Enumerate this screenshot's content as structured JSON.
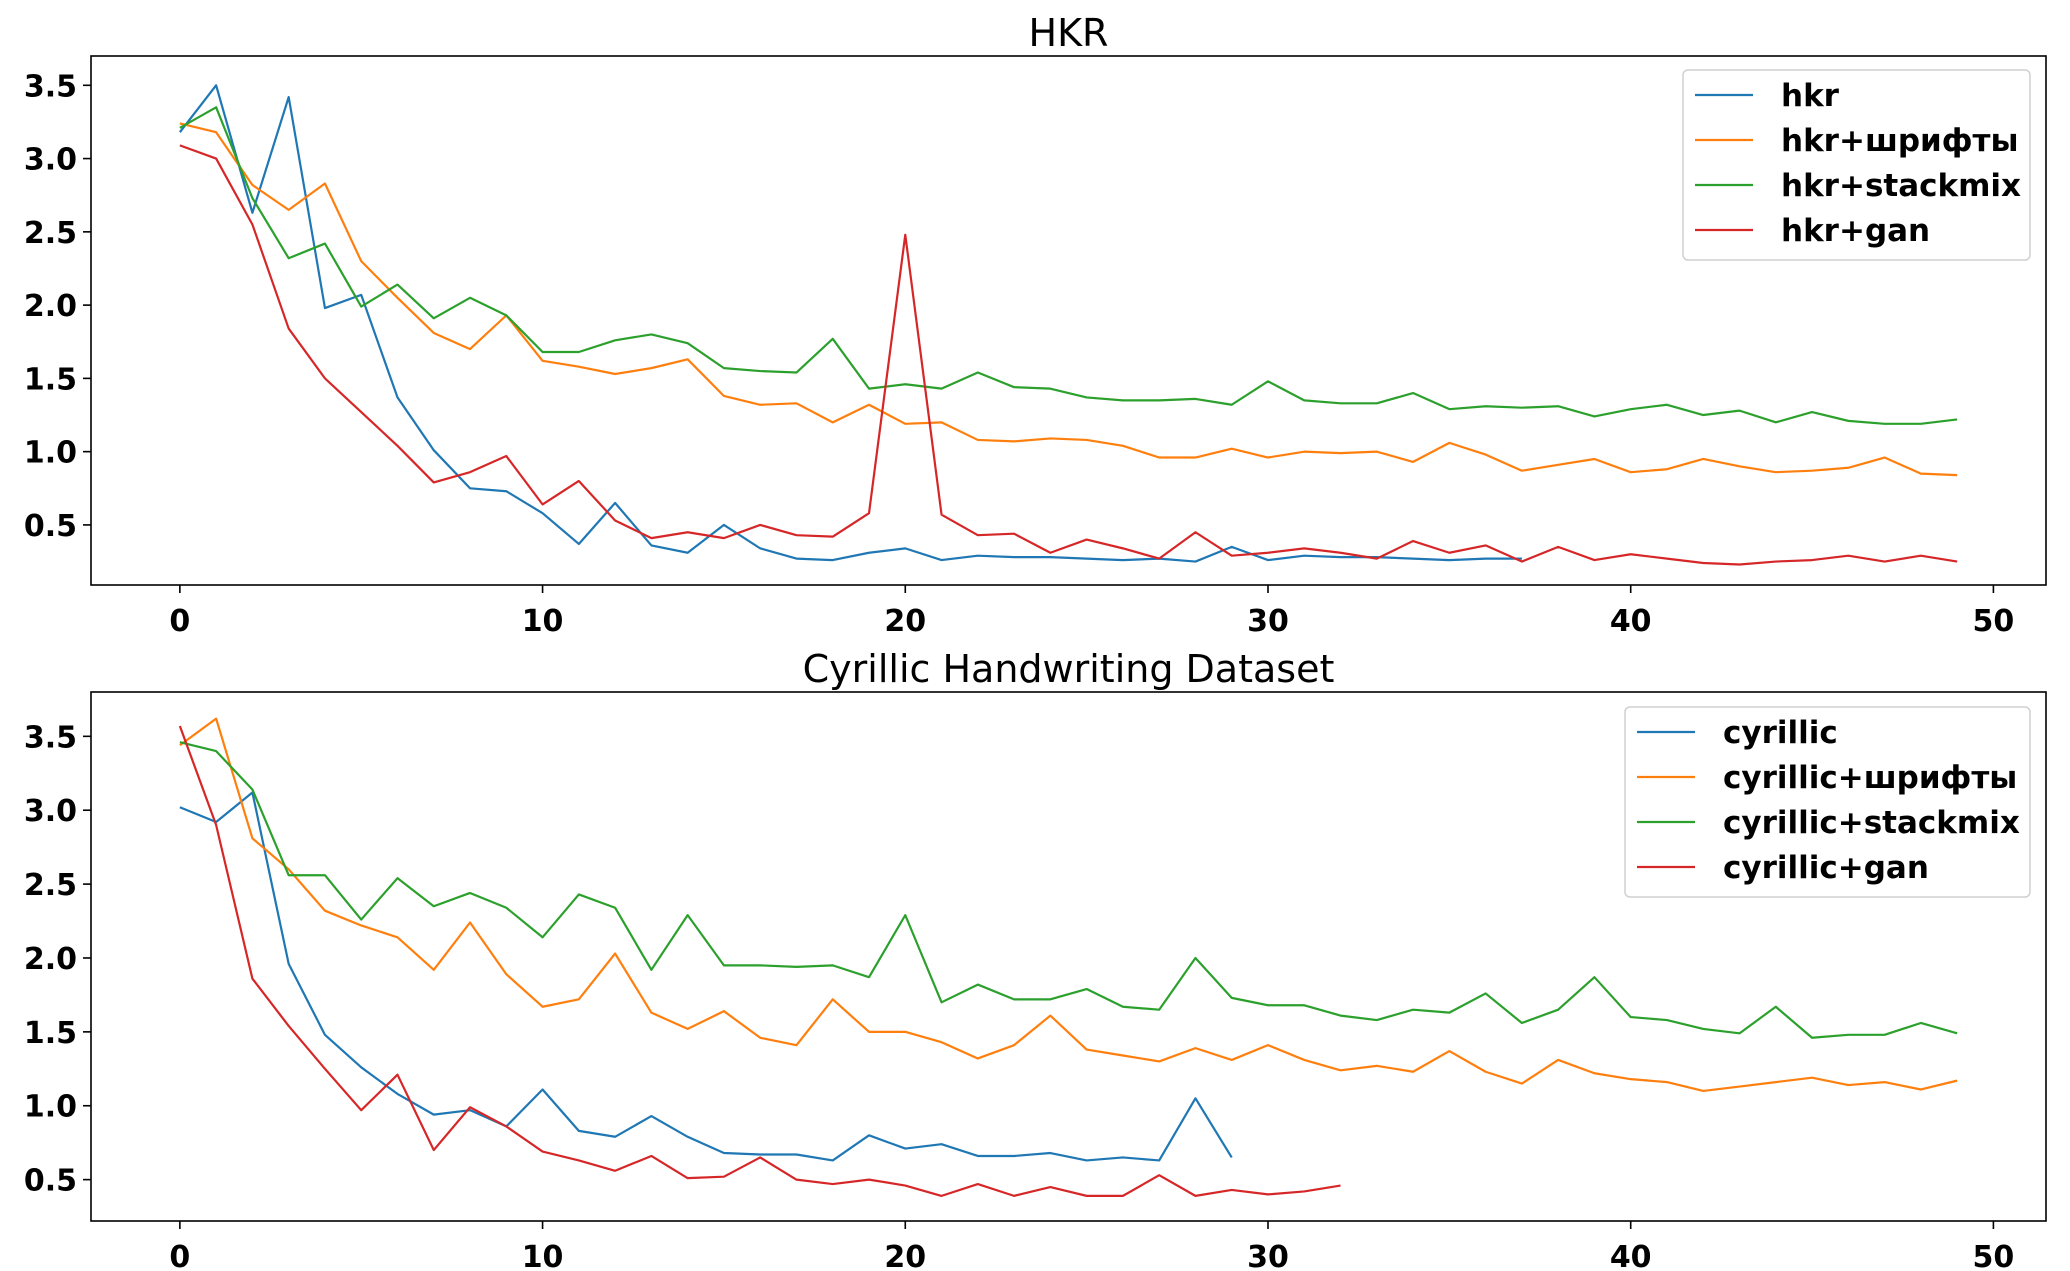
{
  "chart_data": [
    {
      "type": "line",
      "title": "HKR",
      "xlim": [
        -2.45,
        51.45
      ],
      "ylim": [
        0.09,
        3.7
      ],
      "xticks": [
        0,
        10,
        20,
        30,
        40,
        50
      ],
      "yticks": [
        0.5,
        1.0,
        1.5,
        2.0,
        2.5,
        3.0,
        3.5
      ],
      "ytick_labels": [
        "0.5",
        "1.0",
        "1.5",
        "2.0",
        "2.5",
        "3.0",
        "3.5"
      ],
      "grid": false,
      "legend": "top-right",
      "series": [
        {
          "name": "hkr",
          "color": "#1f77b4",
          "x": [
            0,
            1,
            2,
            3,
            4,
            5,
            6,
            7,
            8,
            9,
            10,
            11,
            12,
            13,
            14,
            15,
            16,
            17,
            18,
            19,
            20,
            21,
            22,
            23,
            24,
            25,
            26,
            27,
            28,
            29,
            30,
            31,
            32,
            33,
            34,
            35,
            36,
            37
          ],
          "y": [
            3.18,
            3.5,
            2.63,
            3.42,
            1.98,
            2.07,
            1.37,
            1.01,
            0.75,
            0.73,
            0.58,
            0.37,
            0.65,
            0.36,
            0.31,
            0.5,
            0.34,
            0.27,
            0.26,
            0.31,
            0.34,
            0.26,
            0.29,
            0.28,
            0.28,
            0.27,
            0.26,
            0.27,
            0.25,
            0.35,
            0.26,
            0.29,
            0.28,
            0.28,
            0.27,
            0.26,
            0.27,
            0.27
          ]
        },
        {
          "name": "hkr+шрифты",
          "color": "#ff7f0e",
          "x": [
            0,
            1,
            2,
            3,
            4,
            5,
            6,
            7,
            8,
            9,
            10,
            11,
            12,
            13,
            14,
            15,
            16,
            17,
            18,
            19,
            20,
            21,
            22,
            23,
            24,
            25,
            26,
            27,
            28,
            29,
            30,
            31,
            32,
            33,
            34,
            35,
            36,
            37,
            38,
            39,
            40,
            41,
            42,
            43,
            44,
            45,
            46,
            47,
            48,
            49
          ],
          "y": [
            3.24,
            3.18,
            2.82,
            2.65,
            2.83,
            2.3,
            2.05,
            1.81,
            1.7,
            1.93,
            1.62,
            1.58,
            1.53,
            1.57,
            1.63,
            1.38,
            1.32,
            1.33,
            1.2,
            1.32,
            1.19,
            1.2,
            1.08,
            1.07,
            1.09,
            1.08,
            1.04,
            0.96,
            0.96,
            1.02,
            0.96,
            1.0,
            0.99,
            1.0,
            0.93,
            1.06,
            0.98,
            0.87,
            0.91,
            0.95,
            0.86,
            0.88,
            0.95,
            0.9,
            0.86,
            0.87,
            0.89,
            0.96,
            0.85,
            0.84
          ]
        },
        {
          "name": "hkr+stackmix",
          "color": "#2ca02c",
          "x": [
            0,
            1,
            2,
            3,
            4,
            5,
            6,
            7,
            8,
            9,
            10,
            11,
            12,
            13,
            14,
            15,
            16,
            17,
            18,
            19,
            20,
            21,
            22,
            23,
            24,
            25,
            26,
            27,
            28,
            29,
            30,
            31,
            32,
            33,
            34,
            35,
            36,
            37,
            38,
            39,
            40,
            41,
            42,
            43,
            44,
            45,
            46,
            47,
            48,
            49
          ],
          "y": [
            3.21,
            3.35,
            2.73,
            2.32,
            2.42,
            1.99,
            2.14,
            1.91,
            2.05,
            1.93,
            1.68,
            1.68,
            1.76,
            1.8,
            1.74,
            1.57,
            1.55,
            1.54,
            1.77,
            1.43,
            1.46,
            1.43,
            1.54,
            1.44,
            1.43,
            1.37,
            1.35,
            1.35,
            1.36,
            1.32,
            1.48,
            1.35,
            1.33,
            1.33,
            1.4,
            1.29,
            1.31,
            1.3,
            1.31,
            1.24,
            1.29,
            1.32,
            1.25,
            1.28,
            1.2,
            1.27,
            1.21,
            1.19,
            1.19,
            1.22
          ]
        },
        {
          "name": "hkr+gan",
          "color": "#d62728",
          "x": [
            0,
            1,
            2,
            3,
            4,
            5,
            6,
            7,
            8,
            9,
            10,
            11,
            12,
            13,
            14,
            15,
            16,
            17,
            18,
            19,
            20,
            21,
            22,
            23,
            24,
            25,
            26,
            27,
            28,
            29,
            30,
            31,
            32,
            33,
            34,
            35,
            36,
            37,
            38,
            39,
            40,
            41,
            42,
            43,
            44,
            45,
            46,
            47,
            48,
            49
          ],
          "y": [
            3.09,
            3.0,
            2.55,
            1.84,
            1.5,
            1.27,
            1.04,
            0.79,
            0.86,
            0.97,
            0.64,
            0.8,
            0.53,
            0.41,
            0.45,
            0.41,
            0.5,
            0.43,
            0.42,
            0.58,
            2.48,
            0.57,
            0.43,
            0.44,
            0.31,
            0.4,
            0.34,
            0.27,
            0.45,
            0.29,
            0.31,
            0.34,
            0.31,
            0.27,
            0.39,
            0.31,
            0.36,
            0.25,
            0.35,
            0.26,
            0.3,
            0.27,
            0.24,
            0.23,
            0.25,
            0.26,
            0.29,
            0.25,
            0.29,
            0.25
          ]
        }
      ]
    },
    {
      "type": "line",
      "title": "Cyrillic Handwriting Dataset",
      "xlim": [
        -2.45,
        51.45
      ],
      "ylim": [
        0.22,
        3.8
      ],
      "xticks": [
        0,
        10,
        20,
        30,
        40,
        50
      ],
      "yticks": [
        0.5,
        1.0,
        1.5,
        2.0,
        2.5,
        3.0,
        3.5
      ],
      "ytick_labels": [
        "0.5",
        "1.0",
        "1.5",
        "2.0",
        "2.5",
        "3.0",
        "3.5"
      ],
      "grid": false,
      "legend": "top-right",
      "series": [
        {
          "name": "cyrillic",
          "color": "#1f77b4",
          "x": [
            0,
            1,
            2,
            3,
            4,
            5,
            6,
            7,
            8,
            9,
            10,
            11,
            12,
            13,
            14,
            15,
            16,
            17,
            18,
            19,
            20,
            21,
            22,
            23,
            24,
            25,
            26,
            27,
            28,
            29
          ],
          "y": [
            3.02,
            2.92,
            3.12,
            1.96,
            1.48,
            1.26,
            1.08,
            0.94,
            0.97,
            0.86,
            1.11,
            0.83,
            0.79,
            0.93,
            0.79,
            0.68,
            0.67,
            0.67,
            0.63,
            0.8,
            0.71,
            0.74,
            0.66,
            0.66,
            0.68,
            0.63,
            0.65,
            0.63,
            1.05,
            0.65
          ]
        },
        {
          "name": "cyrillic+шрифты",
          "color": "#ff7f0e",
          "x": [
            0,
            1,
            2,
            3,
            4,
            5,
            6,
            7,
            8,
            9,
            10,
            11,
            12,
            13,
            14,
            15,
            16,
            17,
            18,
            19,
            20,
            21,
            22,
            23,
            24,
            25,
            26,
            27,
            28,
            29,
            30,
            31,
            32,
            33,
            34,
            35,
            36,
            37,
            38,
            39,
            40,
            41,
            42,
            43,
            44,
            45,
            46,
            47,
            48,
            49
          ],
          "y": [
            3.44,
            3.62,
            2.81,
            2.6,
            2.32,
            2.22,
            2.14,
            1.92,
            2.24,
            1.89,
            1.67,
            1.72,
            2.03,
            1.63,
            1.52,
            1.64,
            1.46,
            1.41,
            1.72,
            1.5,
            1.5,
            1.43,
            1.32,
            1.41,
            1.61,
            1.38,
            1.34,
            1.3,
            1.39,
            1.31,
            1.41,
            1.31,
            1.24,
            1.27,
            1.23,
            1.37,
            1.23,
            1.15,
            1.31,
            1.22,
            1.18,
            1.16,
            1.1,
            1.13,
            1.16,
            1.19,
            1.14,
            1.16,
            1.11,
            1.17
          ]
        },
        {
          "name": "cyrillic+stackmix",
          "color": "#2ca02c",
          "x": [
            0,
            1,
            2,
            3,
            4,
            5,
            6,
            7,
            8,
            9,
            10,
            11,
            12,
            13,
            14,
            15,
            16,
            17,
            18,
            19,
            20,
            21,
            22,
            23,
            24,
            25,
            26,
            27,
            28,
            29,
            30,
            31,
            32,
            33,
            34,
            35,
            36,
            37,
            38,
            39,
            40,
            41,
            42,
            43,
            44,
            45,
            46,
            47,
            48,
            49
          ],
          "y": [
            3.46,
            3.4,
            3.14,
            2.56,
            2.56,
            2.26,
            2.54,
            2.35,
            2.44,
            2.34,
            2.14,
            2.43,
            2.34,
            1.92,
            2.29,
            1.95,
            1.95,
            1.94,
            1.95,
            1.87,
            2.29,
            1.7,
            1.82,
            1.72,
            1.72,
            1.79,
            1.67,
            1.65,
            2.0,
            1.73,
            1.68,
            1.68,
            1.61,
            1.58,
            1.65,
            1.63,
            1.76,
            1.56,
            1.65,
            1.87,
            1.6,
            1.58,
            1.52,
            1.49,
            1.67,
            1.46,
            1.48,
            1.48,
            1.56,
            1.49
          ]
        },
        {
          "name": "cyrillic+gan",
          "color": "#d62728",
          "x": [
            0,
            1,
            2,
            3,
            4,
            5,
            6,
            7,
            8,
            9,
            10,
            11,
            12,
            13,
            14,
            15,
            16,
            17,
            18,
            19,
            20,
            21,
            22,
            23,
            24,
            25,
            26,
            27,
            28,
            29,
            30,
            31,
            32
          ],
          "y": [
            3.57,
            2.9,
            1.86,
            1.54,
            1.25,
            0.97,
            1.21,
            0.7,
            0.99,
            0.86,
            0.69,
            0.63,
            0.56,
            0.66,
            0.51,
            0.52,
            0.65,
            0.5,
            0.47,
            0.5,
            0.46,
            0.39,
            0.47,
            0.39,
            0.45,
            0.39,
            0.39,
            0.53,
            0.39,
            0.43,
            0.4,
            0.42,
            0.46
          ]
        }
      ]
    }
  ]
}
